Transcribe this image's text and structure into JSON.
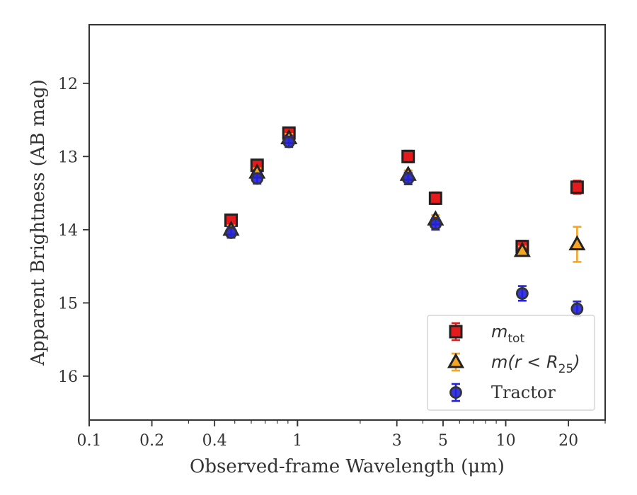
{
  "chart_data": {
    "type": "scatter",
    "xlabel": "Observed-frame Wavelength (μm)",
    "ylabel": "Apparent Brightness (AB mag)",
    "x_scale": "log",
    "xlim": [
      0.1,
      30
    ],
    "ylim": [
      16.6,
      11.2
    ],
    "y_inverted": true,
    "x_ticks": [
      {
        "value": 0.1,
        "label": "0.1"
      },
      {
        "value": 0.2,
        "label": "0.2"
      },
      {
        "value": 0.4,
        "label": "0.4"
      },
      {
        "value": 1,
        "label": "1"
      },
      {
        "value": 3,
        "label": "3"
      },
      {
        "value": 5,
        "label": "5"
      },
      {
        "value": 10,
        "label": "10"
      },
      {
        "value": 20,
        "label": "20"
      }
    ],
    "y_ticks": [
      {
        "value": 12,
        "label": "12"
      },
      {
        "value": 13,
        "label": "13"
      },
      {
        "value": 14,
        "label": "14"
      },
      {
        "value": 15,
        "label": "15"
      },
      {
        "value": 16,
        "label": "16"
      }
    ],
    "legend_position": "lower-right",
    "series": [
      {
        "key": "mtot",
        "name": "m_tot",
        "legend_main": "m",
        "legend_sub": "tot",
        "marker": "square",
        "color": "#e41a1c",
        "edge": "#222222",
        "errcolor": "#e41a1c",
        "points": [
          {
            "x": 0.48,
            "y": 13.87,
            "err": 0.07
          },
          {
            "x": 0.64,
            "y": 13.12,
            "err": 0.07
          },
          {
            "x": 0.91,
            "y": 12.68,
            "err": 0.07
          },
          {
            "x": 3.4,
            "y": 13.0,
            "err": 0.08
          },
          {
            "x": 4.6,
            "y": 13.57,
            "err": 0.08
          },
          {
            "x": 12.0,
            "y": 14.23,
            "err": 0.08
          },
          {
            "x": 22.0,
            "y": 13.42,
            "err": 0.09
          }
        ]
      },
      {
        "key": "mr25",
        "name": "m(r < R25)",
        "legend_main": "m(r < R",
        "legend_sub": "25",
        "legend_close": ")",
        "marker": "triangle",
        "color": "#f5a623",
        "edge": "#222222",
        "errcolor": "#f5a623",
        "points": [
          {
            "x": 0.48,
            "y": 14.0,
            "err": 0.06
          },
          {
            "x": 0.64,
            "y": 13.22,
            "err": 0.06
          },
          {
            "x": 0.91,
            "y": 12.75,
            "err": 0.06
          },
          {
            "x": 3.4,
            "y": 13.25,
            "err": 0.06
          },
          {
            "x": 4.6,
            "y": 13.86,
            "err": 0.06
          },
          {
            "x": 12.0,
            "y": 14.29,
            "err": 0.06
          },
          {
            "x": 22.0,
            "y": 14.2,
            "err": 0.24
          }
        ]
      },
      {
        "key": "tractor",
        "name": "Tractor",
        "legend_main": "Tractor",
        "marker": "circle",
        "color": "#2222dd",
        "edge": "#333333",
        "errcolor": "#2222dd",
        "points": [
          {
            "x": 0.48,
            "y": 14.04,
            "err": 0.07
          },
          {
            "x": 0.64,
            "y": 13.3,
            "err": 0.07
          },
          {
            "x": 0.91,
            "y": 12.8,
            "err": 0.07
          },
          {
            "x": 3.4,
            "y": 13.3,
            "err": 0.08
          },
          {
            "x": 4.6,
            "y": 13.92,
            "err": 0.08
          },
          {
            "x": 12.0,
            "y": 14.87,
            "err": 0.1
          },
          {
            "x": 22.0,
            "y": 15.08,
            "err": 0.1
          }
        ]
      }
    ]
  }
}
